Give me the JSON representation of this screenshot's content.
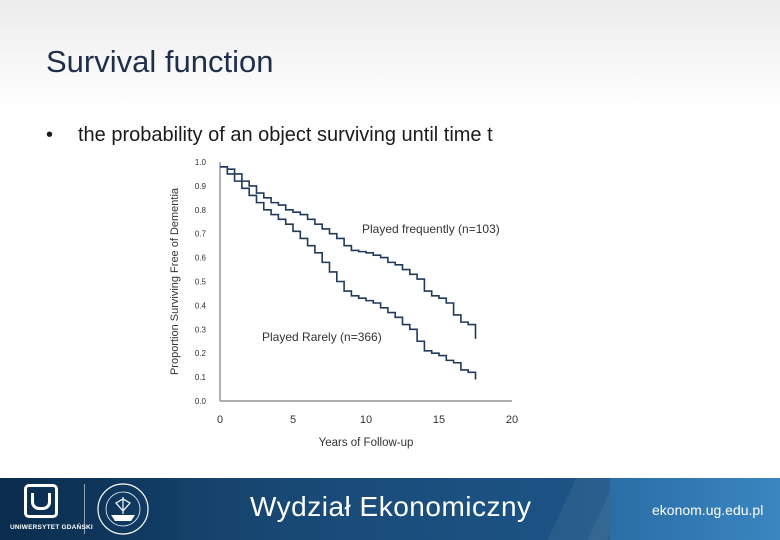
{
  "slide": {
    "title": "Survival function",
    "bullets": [
      "the probability of an object surviving until time t"
    ]
  },
  "chart_data": {
    "type": "line",
    "title": "",
    "xlabel": "Years of Follow-up",
    "ylabel": "Proportion Surviving Free of Dementia",
    "xlim": [
      0,
      20
    ],
    "ylim": [
      0.0,
      1.0
    ],
    "xticks": [
      0,
      5,
      10,
      15,
      20
    ],
    "yticks": [
      "0.0",
      "0.1",
      "0.2",
      "0.3",
      "0.4",
      "0.5",
      "0.6",
      "0.7",
      "0.8",
      "0.9",
      "1.0"
    ],
    "grid": false,
    "series": [
      {
        "name": "Played frequently (n=103)",
        "x": [
          0,
          0.5,
          1,
          1.5,
          2,
          2.5,
          3,
          3.5,
          4,
          4.5,
          5,
          5.5,
          6,
          6.5,
          7,
          7.5,
          8,
          8.5,
          9,
          9.5,
          10,
          10.5,
          11,
          11.5,
          12,
          12.5,
          13,
          13.5,
          14,
          14.5,
          15,
          15.5,
          16,
          16.5,
          17,
          17.5
        ],
        "y": [
          0.98,
          0.97,
          0.95,
          0.92,
          0.9,
          0.87,
          0.85,
          0.83,
          0.82,
          0.8,
          0.79,
          0.78,
          0.76,
          0.74,
          0.72,
          0.7,
          0.68,
          0.65,
          0.63,
          0.625,
          0.62,
          0.61,
          0.6,
          0.58,
          0.57,
          0.55,
          0.53,
          0.51,
          0.46,
          0.44,
          0.43,
          0.41,
          0.36,
          0.33,
          0.32,
          0.26
        ],
        "label": "Played frequently (n=103)"
      },
      {
        "name": "Played Rarely (n=366)",
        "x": [
          0,
          0.5,
          1,
          1.5,
          2,
          2.5,
          3,
          3.5,
          4,
          4.5,
          5,
          5.5,
          6,
          6.5,
          7,
          7.5,
          8,
          8.5,
          9,
          9.5,
          10,
          10.5,
          11,
          11.5,
          12,
          12.5,
          13,
          13.5,
          14,
          14.5,
          15,
          15.5,
          16,
          16.5,
          17,
          17.5
        ],
        "y": [
          0.98,
          0.95,
          0.92,
          0.89,
          0.86,
          0.83,
          0.8,
          0.78,
          0.76,
          0.74,
          0.71,
          0.68,
          0.65,
          0.62,
          0.58,
          0.54,
          0.5,
          0.46,
          0.44,
          0.43,
          0.42,
          0.41,
          0.39,
          0.37,
          0.35,
          0.32,
          0.3,
          0.25,
          0.21,
          0.2,
          0.19,
          0.17,
          0.16,
          0.13,
          0.12,
          0.09
        ],
        "label": "Played Rarely (n=366)"
      }
    ],
    "colors": {
      "line": "#1f3a5a",
      "axis": "#7f7f7f",
      "text": "#333333"
    }
  },
  "footer": {
    "university": "UNIWERSYTET GDAŃSKI",
    "faculty": "Wydział Ekonomiczny",
    "url": "ekonom.ug.edu.pl",
    "colors": {
      "band": "#1a4c7a",
      "dark": "#0a2c4d",
      "light": "#3a86c0"
    }
  }
}
